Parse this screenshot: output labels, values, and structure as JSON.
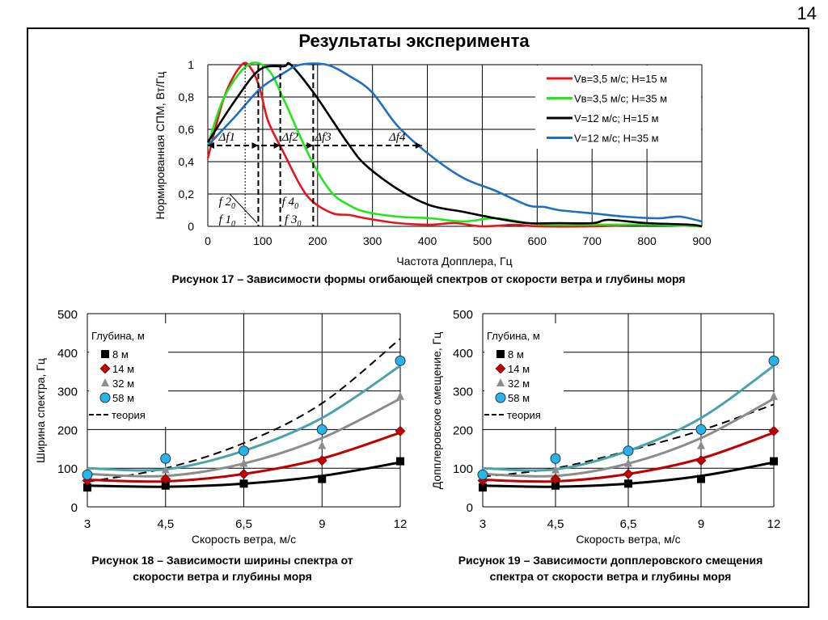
{
  "page_number": "14",
  "title": "Результаты эксперимента",
  "colors": {
    "red": "#e8141b",
    "green": "#1ee81a",
    "black": "#000000",
    "blue": "#1f6fc0",
    "cyan": "#4aa3a8",
    "gray": "#8c8c8c",
    "darkred": "#c00000",
    "marker_cyan": "#29b3e6"
  },
  "chart_data": [
    {
      "type": "line",
      "caption": "Рисунок 17 – Зависимости  формы огибающей спектров от скорости ветра и глубины моря",
      "xlabel": "Частота Допплера, Гц",
      "ylabel": "Нормированная СПМ, Вт/Гц",
      "xlim": [
        0,
        900
      ],
      "ylim": [
        0,
        1
      ],
      "xticks": [
        "0",
        "100",
        "200",
        "300",
        "400",
        "500",
        "600",
        "700",
        "800",
        "900"
      ],
      "yticks": [
        "0",
        "0,2",
        "0,4",
        "0,6",
        "0,8",
        "1"
      ],
      "grid": true,
      "legend_position": "top-right",
      "series": [
        {
          "name": "Vв=3,5 м/с; H=15 м",
          "color": "#e8141b",
          "x": [
            0,
            30,
            62,
            80,
            95,
            110,
            139,
            169,
            192,
            228,
            258,
            287,
            346,
            405,
            450,
            500,
            560,
            600,
            700,
            800,
            900
          ],
          "y": [
            0.42,
            0.8,
            1.0,
            0.97,
            0.85,
            0.65,
            0.45,
            0.25,
            0.15,
            0.08,
            0.07,
            0.05,
            0.02,
            0.01,
            0.02,
            0.0,
            0.01,
            0.0,
            0.0,
            0.01,
            0.0
          ]
        },
        {
          "name": "Vв=3,5 м/с; H=35 м",
          "color": "#1ee81a",
          "x": [
            0,
            30,
            74,
            110,
            139,
            169,
            198,
            228,
            258,
            287,
            346,
            405,
            465,
            524,
            583,
            620,
            700,
            800,
            900
          ],
          "y": [
            0.5,
            0.8,
            1.0,
            0.97,
            0.78,
            0.55,
            0.35,
            0.2,
            0.13,
            0.09,
            0.06,
            0.05,
            0.03,
            0.05,
            0.02,
            0.01,
            0.01,
            0.01,
            0.0
          ]
        },
        {
          "name": "V=12 м/с; H=15 м",
          "color": "#000000",
          "x": [
            0,
            50,
            95,
            139,
            151,
            192,
            228,
            258,
            287,
            346,
            405,
            465,
            524,
            583,
            640,
            702,
            730,
            800,
            879,
            900
          ],
          "y": [
            0.52,
            0.78,
            0.97,
            0.99,
            1.0,
            0.83,
            0.65,
            0.5,
            0.38,
            0.23,
            0.13,
            0.09,
            0.05,
            0.02,
            0.02,
            0.02,
            0.04,
            0.02,
            0.01,
            0.0
          ]
        },
        {
          "name": "V=12 м/с; H=35 м",
          "color": "#1f6fc0",
          "x": [
            0,
            50,
            95,
            139,
            169,
            216,
            258,
            299,
            346,
            405,
            465,
            524,
            583,
            613,
            640,
            702,
            760,
            821,
            860,
            900
          ],
          "y": [
            0.5,
            0.68,
            0.85,
            0.95,
            1.0,
            1.0,
            0.93,
            0.83,
            0.62,
            0.44,
            0.3,
            0.22,
            0.13,
            0.12,
            0.1,
            0.08,
            0.06,
            0.05,
            0.06,
            0.03
          ]
        }
      ],
      "annotations": {
        "delta_labels": [
          {
            "text": "Δf1",
            "x": 35
          },
          {
            "text": "Δf2",
            "x": 150
          },
          {
            "text": "Δf3",
            "x": 210
          },
          {
            "text": "Δf4",
            "x": 345
          }
        ],
        "level": 0.5,
        "arrow_ends": [
          92,
          132,
          192,
          390
        ],
        "markers_dotted": [
          68
        ],
        "markers_dashed": [
          92,
          132,
          192
        ],
        "f_labels": [
          {
            "text": "f 2",
            "sub": "0",
            "x": 20,
            "y": 0.15
          },
          {
            "text": "f 1",
            "sub": "0",
            "x": 20,
            "y": 0.04
          },
          {
            "text": "f 4",
            "sub": "0",
            "x": 135,
            "y": 0.15
          },
          {
            "text": "f 3",
            "sub": "0",
            "x": 140,
            "y": 0.04
          }
        ]
      }
    },
    {
      "type": "scatter",
      "caption_lines": [
        "Рисунок 18 – Зависимости ширины спектра от",
        "скорости ветра и глубины моря"
      ],
      "xlabel": "Скорость ветра, м/с",
      "ylabel": "Ширина спектра, Гц",
      "categories": [
        "3",
        "4,5",
        "6,5",
        "9",
        "12"
      ],
      "ylim": [
        0,
        500
      ],
      "yticks": [
        "0",
        "100",
        "200",
        "300",
        "400",
        "500"
      ],
      "legend_title": "Глубина, м",
      "series": [
        {
          "name": "8 м",
          "marker": "square",
          "color": "#000000",
          "line": "#000000",
          "values": [
            50,
            55,
            60,
            72,
            118
          ],
          "trend": [
            55,
            52,
            60,
            80,
            115
          ]
        },
        {
          "name": "14 м",
          "marker": "diamond",
          "color": "#c00000",
          "line": "#c00000",
          "values": [
            68,
            72,
            85,
            120,
            196
          ],
          "trend": [
            70,
            66,
            85,
            125,
            192
          ]
        },
        {
          "name": "32 м",
          "marker": "triangle",
          "color": "#8c8c8c",
          "line": "#8c8c8c",
          "values": [
            85,
            95,
            112,
            158,
            285
          ],
          "trend": [
            85,
            80,
            112,
            178,
            280
          ]
        },
        {
          "name": "58 м",
          "marker": "circle",
          "color": "#29b3e6",
          "line": "#4aa3a8",
          "values": [
            83,
            125,
            145,
            200,
            378
          ],
          "trend": [
            100,
            97,
            145,
            230,
            365
          ]
        }
      ],
      "theory": {
        "name": "теория",
        "values": [
          65,
          100,
          165,
          268,
          435
        ]
      }
    },
    {
      "type": "scatter",
      "caption_lines": [
        "Рисунок 19 – Зависимости допплеровского смещения",
        "спектра от скорости ветра и глубины моря"
      ],
      "xlabel": "Скорость ветра, м/с",
      "ylabel": "Допплеровское смещение, Гц",
      "categories": [
        "3",
        "4,5",
        "6,5",
        "9",
        "12"
      ],
      "ylim": [
        0,
        500
      ],
      "yticks": [
        "0",
        "100",
        "200",
        "300",
        "400",
        "500"
      ],
      "legend_title": "Глубина, м",
      "series": [
        {
          "name": "8 м",
          "marker": "square",
          "color": "#000000",
          "line": "#000000",
          "values": [
            50,
            55,
            60,
            72,
            118
          ],
          "trend": [
            55,
            52,
            60,
            80,
            115
          ]
        },
        {
          "name": "14 м",
          "marker": "diamond",
          "color": "#c00000",
          "line": "#c00000",
          "values": [
            68,
            72,
            85,
            120,
            196
          ],
          "trend": [
            70,
            66,
            85,
            125,
            192
          ]
        },
        {
          "name": "32 м",
          "marker": "triangle",
          "color": "#8c8c8c",
          "line": "#8c8c8c",
          "values": [
            85,
            95,
            112,
            158,
            285
          ],
          "trend": [
            85,
            80,
            112,
            178,
            280
          ]
        },
        {
          "name": "58 м",
          "marker": "circle",
          "color": "#29b3e6",
          "line": "#4aa3a8",
          "values": [
            83,
            125,
            145,
            200,
            378
          ],
          "trend": [
            100,
            97,
            145,
            230,
            365
          ]
        }
      ],
      "theory": {
        "name": "теория",
        "values": [
          78,
          100,
          145,
          198,
          265
        ]
      }
    }
  ]
}
